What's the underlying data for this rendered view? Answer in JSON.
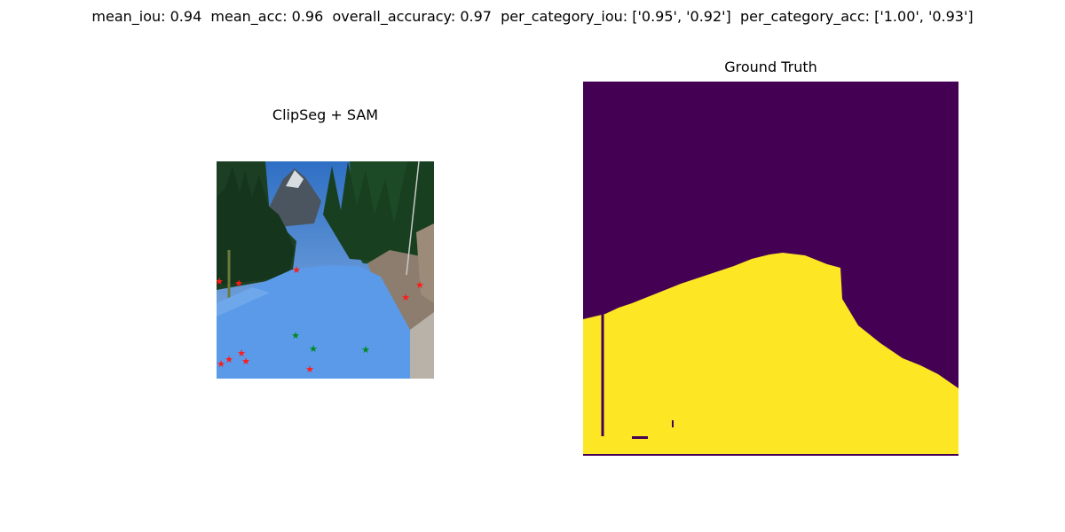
{
  "figure": {
    "suptitle": "mean_iou: 0.94  mean_acc: 0.96  overall_accuracy: 0.97  per_category_iou: ['0.95', '0.92']  per_category_acc: ['1.00', '0.93']"
  },
  "panels": [
    {
      "title": "ClipSeg + SAM",
      "image": "road-photo-with-blue-road-mask-overlay"
    },
    {
      "title": "Ground Truth",
      "image": "binary-mask-purple-background-yellow-road"
    }
  ],
  "colors": {
    "mask_overlay": "#5a9ae8",
    "gt_background": "#440154",
    "gt_foreground": "#fde725",
    "positive_point": "#008a1e",
    "negative_point": "#ff1a1a"
  }
}
